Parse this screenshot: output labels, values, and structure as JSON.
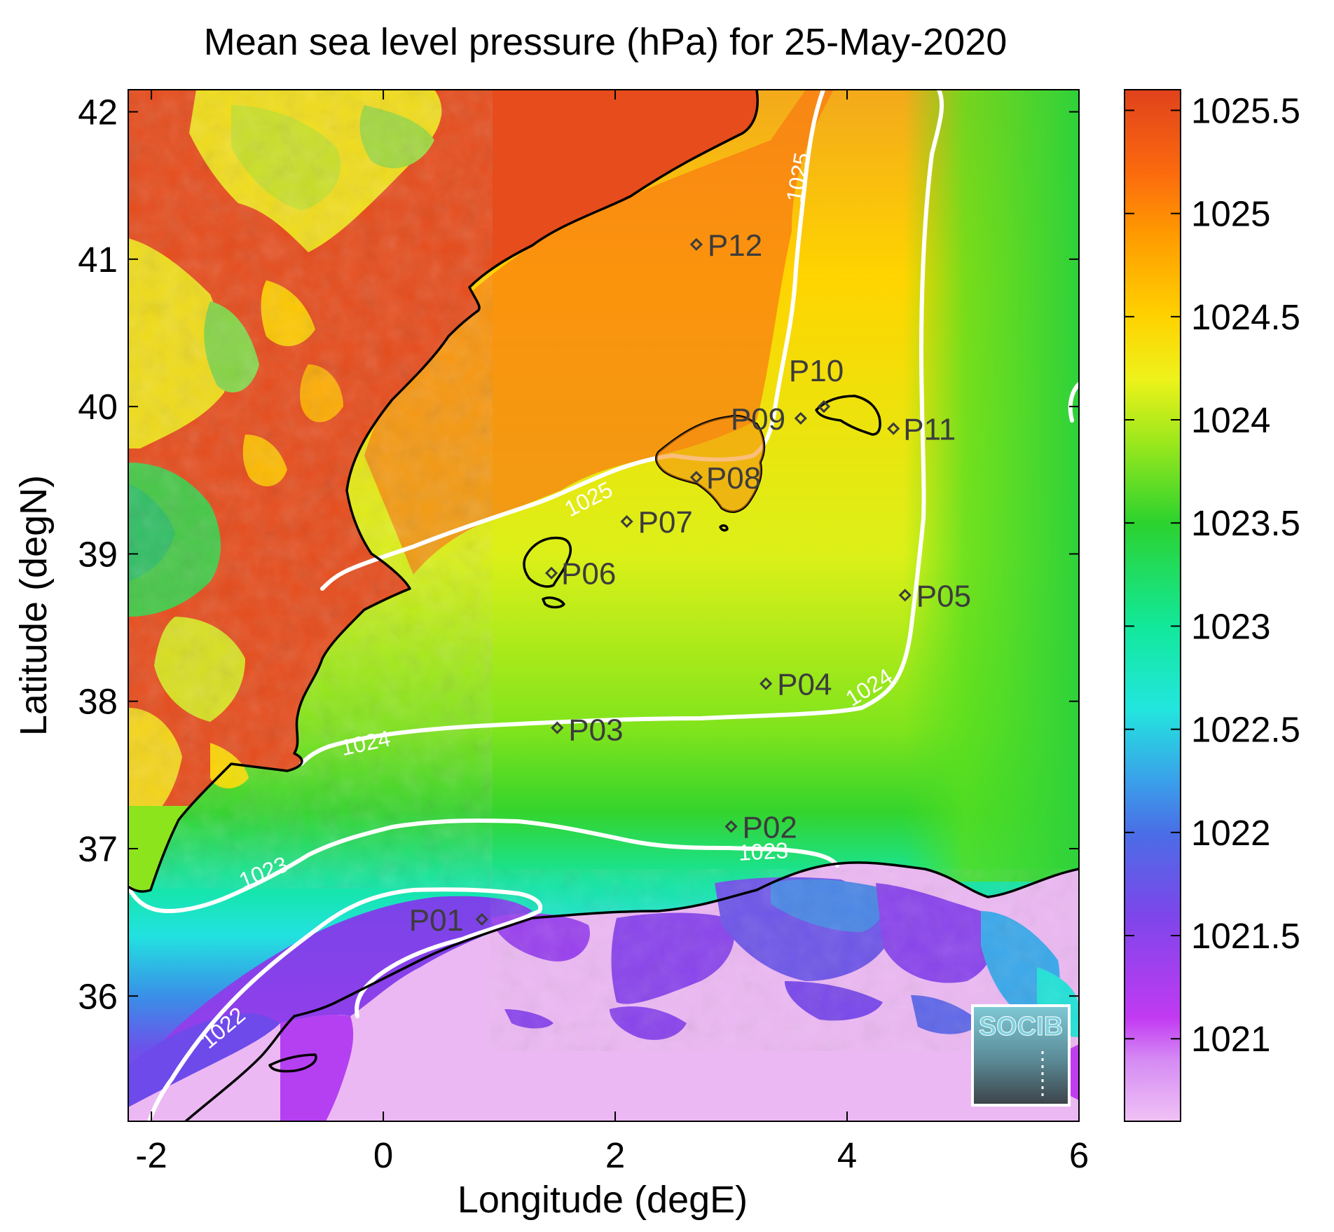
{
  "title": "Mean sea level pressure (hPa) for 25-May-2020",
  "x_axis": {
    "label": "Longitude (degE)",
    "range": [
      -2.2,
      6.0
    ],
    "ticks": [
      "-2",
      "0",
      "2",
      "4",
      "6"
    ]
  },
  "y_axis": {
    "label": "Latitude (degN)",
    "range": [
      35.15,
      42.15
    ],
    "ticks": [
      "36",
      "37",
      "38",
      "39",
      "40",
      "41",
      "42"
    ]
  },
  "colorbar": {
    "range": [
      1020.6,
      1025.6
    ],
    "ticks": [
      "1021",
      "1021.5",
      "1022",
      "1022.5",
      "1023",
      "1023.5",
      "1024",
      "1024.5",
      "1025",
      "1025.5"
    ],
    "colors": [
      "#ecb7f3",
      "#c23af2",
      "#8440ea",
      "#3f7ae6",
      "#2ad0ee",
      "#10eaaa",
      "#2fd433",
      "#bdf01a",
      "#ffe000",
      "#ff8a00",
      "#e5401c"
    ]
  },
  "contour_labels": [
    "1025",
    "1025",
    "1024",
    "1024",
    "1023",
    "1023",
    "1022"
  ],
  "stations": [
    {
      "name": "P01",
      "lon": 0.85,
      "lat": 36.52
    },
    {
      "name": "P02",
      "lon": 3.0,
      "lat": 37.15
    },
    {
      "name": "P03",
      "lon": 1.5,
      "lat": 37.82
    },
    {
      "name": "P04",
      "lon": 3.3,
      "lat": 38.12
    },
    {
      "name": "P05",
      "lon": 4.5,
      "lat": 38.72
    },
    {
      "name": "P06",
      "lon": 1.45,
      "lat": 38.87
    },
    {
      "name": "P07",
      "lon": 2.1,
      "lat": 39.22
    },
    {
      "name": "P08",
      "lon": 2.7,
      "lat": 39.52
    },
    {
      "name": "P09",
      "lon": 3.6,
      "lat": 39.92
    },
    {
      "name": "P10",
      "lon": 3.8,
      "lat": 40.0
    },
    {
      "name": "P11",
      "lon": 4.4,
      "lat": 39.85
    },
    {
      "name": "P12",
      "lon": 2.7,
      "lat": 41.1
    }
  ],
  "logo_text": "SOCIB"
}
